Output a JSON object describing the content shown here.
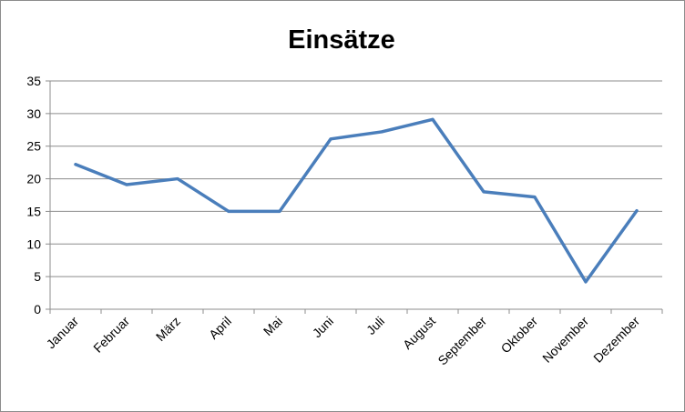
{
  "chart_data": {
    "type": "line",
    "title": "Einsätze",
    "xlabel": "",
    "ylabel": "",
    "categories": [
      "Januar",
      "Februar",
      "März",
      "April",
      "Mai",
      "Juni",
      "Juli",
      "August",
      "September",
      "Oktober",
      "November",
      "Dezember"
    ],
    "series": [
      {
        "values": [
          22.2,
          19.1,
          20.0,
          15.0,
          15.0,
          26.1,
          27.2,
          29.1,
          18.0,
          17.2,
          4.2,
          15.1
        ],
        "color": "#4a7ebb"
      }
    ],
    "ylim": [
      0,
      35
    ],
    "yticks": [
      0,
      5,
      10,
      15,
      20,
      25,
      30,
      35
    ],
    "grid": true,
    "legend": "none"
  }
}
